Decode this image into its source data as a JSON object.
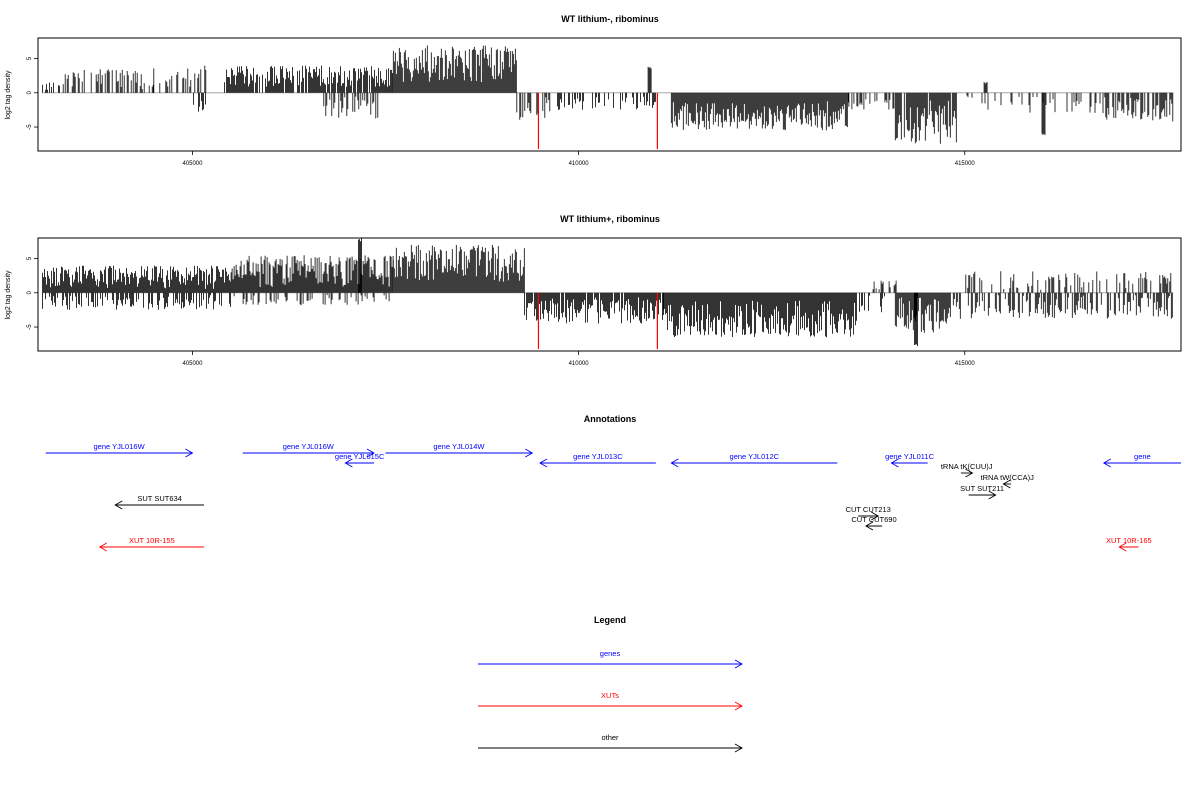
{
  "chart_data": [
    {
      "type": "bar",
      "title": "WT lithium-, ribominus",
      "xlabel": "",
      "ylabel": "log2 tag density",
      "xlim": [
        403000,
        417800
      ],
      "ylim": [
        -8.5,
        8
      ],
      "x_ticks": [
        405000,
        410000,
        415000
      ],
      "x_tick_labels": [
        "405000",
        "410000",
        "415000"
      ],
      "y_ticks": [
        5,
        0,
        -5
      ],
      "y_tick_labels": [
        "5",
        "0",
        "-5"
      ],
      "red_bars": [
        {
          "x": 409480,
          "y": -8.2
        },
        {
          "x": 411020,
          "y": -8.2
        }
      ],
      "segments": [
        {
          "x0": 403060,
          "x1": 403300,
          "min": 0.2,
          "max": 1.5,
          "sign": 1,
          "density": 0.45
        },
        {
          "x0": 403300,
          "x1": 404500,
          "min": 0.5,
          "max": 3.5,
          "sign": 1,
          "density": 0.45
        },
        {
          "x0": 404500,
          "x1": 405200,
          "min": 0.5,
          "max": 4.0,
          "sign": 1,
          "density": 0.5
        },
        {
          "x0": 405000,
          "x1": 405200,
          "min": 1.0,
          "max": 2.8,
          "sign": -1,
          "density": 0.4
        },
        {
          "x0": 405400,
          "x1": 407600,
          "min": 0.8,
          "max": 4.0,
          "sign": 1,
          "density": 0.8
        },
        {
          "x0": 406700,
          "x1": 407400,
          "min": 0.5,
          "max": 3.8,
          "sign": -1,
          "density": 0.4
        },
        {
          "x0": 407600,
          "x1": 409200,
          "min": 1.5,
          "max": 7.0,
          "sign": 1,
          "density": 1.5
        },
        {
          "x0": 409200,
          "x1": 409700,
          "min": 0.5,
          "max": 4.0,
          "sign": -1,
          "density": 0.5
        },
        {
          "x0": 409700,
          "x1": 411000,
          "min": 0.3,
          "max": 2.5,
          "sign": -1,
          "density": 0.3
        },
        {
          "x0": 410900,
          "x1": 410950,
          "min": 3.5,
          "max": 3.8,
          "sign": 1,
          "density": 1.0
        },
        {
          "x0": 411200,
          "x1": 413500,
          "min": 1.0,
          "max": 5.5,
          "sign": -1,
          "density": 1.4
        },
        {
          "x0": 413500,
          "x1": 414100,
          "min": 0.5,
          "max": 2.5,
          "sign": -1,
          "density": 0.3
        },
        {
          "x0": 414100,
          "x1": 414900,
          "min": 1.0,
          "max": 7.5,
          "sign": -1,
          "density": 0.9
        },
        {
          "x0": 414900,
          "x1": 416800,
          "min": 0.3,
          "max": 3.0,
          "sign": -1,
          "density": 0.25
        },
        {
          "x0": 415250,
          "x1": 415300,
          "min": 1.3,
          "max": 1.6,
          "sign": 1,
          "density": 1.0
        },
        {
          "x0": 416000,
          "x1": 416050,
          "min": 5.8,
          "max": 6.2,
          "sign": -1,
          "density": 1.0
        },
        {
          "x0": 416800,
          "x1": 417700,
          "min": 0.5,
          "max": 4.2,
          "sign": -1,
          "density": 0.6
        }
      ]
    },
    {
      "type": "bar",
      "title": "WT lithium+, ribominus",
      "xlabel": "",
      "ylabel": "log2 tag density",
      "xlim": [
        403000,
        417800
      ],
      "ylim": [
        -8.5,
        8
      ],
      "x_ticks": [
        405000,
        410000,
        415000
      ],
      "x_tick_labels": [
        "405000",
        "410000",
        "415000"
      ],
      "y_ticks": [
        5,
        0,
        -5
      ],
      "y_tick_labels": [
        "5",
        "0",
        "-5"
      ],
      "red_bars": [
        {
          "x": 409480,
          "y": -8.2
        },
        {
          "x": 411020,
          "y": -8.2
        }
      ],
      "segments": [
        {
          "x0": 403060,
          "x1": 405500,
          "min": 0.5,
          "max": 4.0,
          "sign": 1,
          "density": 1.0
        },
        {
          "x0": 403060,
          "x1": 405500,
          "min": 0.3,
          "max": 2.5,
          "sign": -1,
          "density": 0.5
        },
        {
          "x0": 405500,
          "x1": 407600,
          "min": 0.8,
          "max": 5.5,
          "sign": 1,
          "density": 1.3
        },
        {
          "x0": 405500,
          "x1": 407600,
          "min": 0.3,
          "max": 1.8,
          "sign": -1,
          "density": 0.3
        },
        {
          "x0": 407150,
          "x1": 407200,
          "min": 7.5,
          "max": 8.0,
          "sign": 1,
          "density": 1.0
        },
        {
          "x0": 407600,
          "x1": 409300,
          "min": 1.5,
          "max": 7.0,
          "sign": 1,
          "density": 1.6
        },
        {
          "x0": 409300,
          "x1": 411100,
          "min": 0.5,
          "max": 4.5,
          "sign": -1,
          "density": 0.9
        },
        {
          "x0": 411100,
          "x1": 413600,
          "min": 1.0,
          "max": 6.5,
          "sign": -1,
          "density": 1.7
        },
        {
          "x0": 413600,
          "x1": 414000,
          "min": 0.3,
          "max": 3.0,
          "sign": -1,
          "density": 0.5
        },
        {
          "x0": 413800,
          "x1": 414200,
          "min": 0.3,
          "max": 1.8,
          "sign": 1,
          "density": 0.3
        },
        {
          "x0": 414100,
          "x1": 414800,
          "min": 0.5,
          "max": 6.0,
          "sign": -1,
          "density": 1.1
        },
        {
          "x0": 414350,
          "x1": 414400,
          "min": 7.5,
          "max": 7.8,
          "sign": -1,
          "density": 1.0
        },
        {
          "x0": 414800,
          "x1": 417700,
          "min": 0.3,
          "max": 3.8,
          "sign": -1,
          "density": 0.55
        },
        {
          "x0": 415000,
          "x1": 417700,
          "min": 0.3,
          "max": 3.2,
          "sign": 1,
          "density": 0.3
        }
      ]
    }
  ],
  "annotations": {
    "title": "Annotations",
    "xlim": [
      403000,
      417800
    ],
    "features": [
      {
        "label": "gene YJL016W",
        "class": "gene",
        "start": 403100,
        "end": 405000,
        "strand": "+",
        "row": 0
      },
      {
        "label": "gene YJL016W",
        "class": "gene",
        "start": 405650,
        "end": 407350,
        "strand": "+",
        "row": 0
      },
      {
        "label": "gene YJL015C",
        "class": "gene",
        "start": 406980,
        "end": 407350,
        "strand": "-",
        "row": 1
      },
      {
        "label": "gene YJL014W",
        "class": "gene",
        "start": 407500,
        "end": 409400,
        "strand": "+",
        "row": 0
      },
      {
        "label": "gene YJL013C",
        "class": "gene",
        "start": 409500,
        "end": 411000,
        "strand": "-",
        "row": 1
      },
      {
        "label": "gene YJL012C",
        "class": "gene",
        "start": 411200,
        "end": 413350,
        "strand": "-",
        "row": 1
      },
      {
        "label": "gene YJL011C",
        "class": "gene",
        "start": 414050,
        "end": 414520,
        "strand": "-",
        "row": 1
      },
      {
        "label": "gene",
        "class": "gene",
        "start": 416800,
        "end": 417800,
        "strand": "-",
        "row": 1
      },
      {
        "label": "tRNA tK(CUU)J",
        "class": "other",
        "start": 414950,
        "end": 415100,
        "strand": "+",
        "row": 2
      },
      {
        "label": "tRNA tW(CCA)J",
        "class": "other",
        "start": 415500,
        "end": 415600,
        "strand": "-",
        "row": 3
      },
      {
        "label": "SUT SUT211",
        "class": "other",
        "start": 415050,
        "end": 415400,
        "strand": "+",
        "row": 4
      },
      {
        "label": "SUT SUT634",
        "class": "other",
        "start": 404000,
        "end": 405150,
        "strand": "-",
        "row": 5
      },
      {
        "label": "CUT CUT213",
        "class": "other",
        "start": 413620,
        "end": 413880,
        "strand": "+",
        "row": 6
      },
      {
        "label": "CUT CUT690",
        "class": "other",
        "start": 413720,
        "end": 413930,
        "strand": "-",
        "row": 7
      },
      {
        "label": "XUT 10R-155",
        "class": "xut",
        "start": 403800,
        "end": 405150,
        "strand": "-",
        "row": 8
      },
      {
        "label": "XUT 10R-165",
        "class": "xut",
        "start": 417000,
        "end": 417250,
        "strand": "-",
        "row": 8
      }
    ]
  },
  "legend": {
    "title": "Legend",
    "items": [
      {
        "label": "genes",
        "class": "gene"
      },
      {
        "label": "XUTs",
        "class": "xut"
      },
      {
        "label": "other",
        "class": "other"
      }
    ]
  },
  "colors": {
    "gene": "#0000ff",
    "xut": "#ff0000",
    "other": "#000000",
    "red_bar": "#ff0000"
  }
}
